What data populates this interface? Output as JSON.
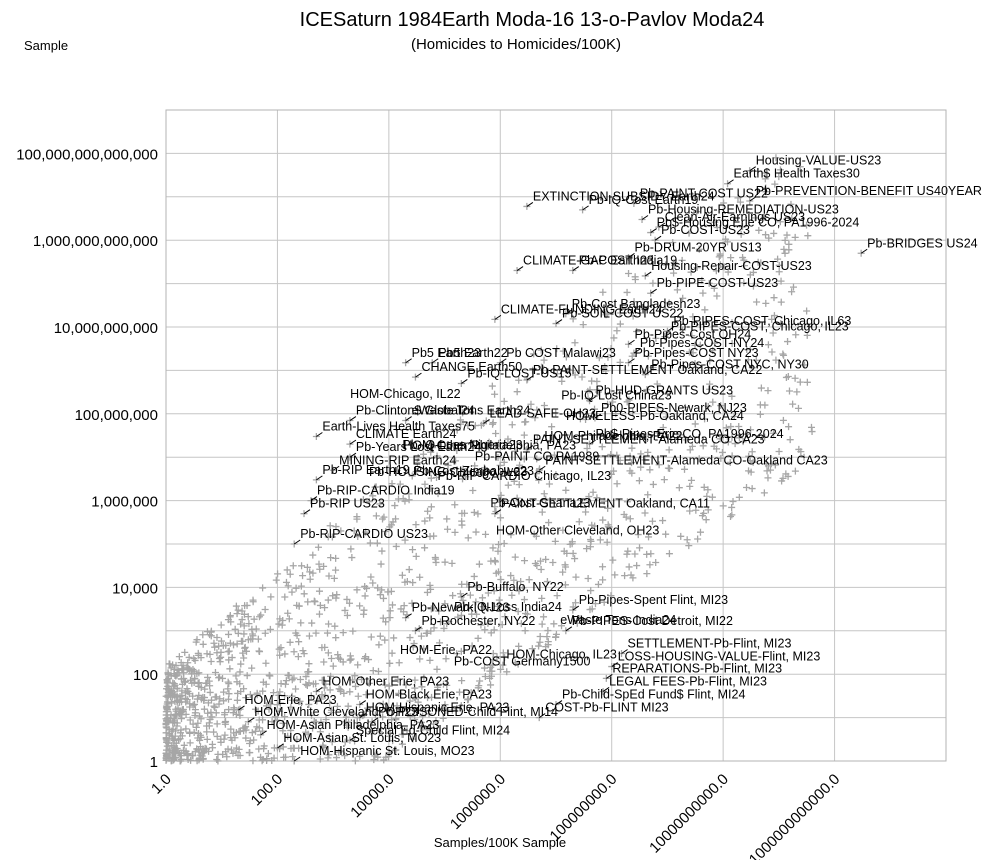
{
  "chart_data": {
    "type": "scatter",
    "title": "ICESaturn 1984Earth Moda-16 13-o-Pavlov Moda24",
    "subtitle": "(Homicides to Homicides/100K)",
    "xlabel": "Samples/100K Sample",
    "ylabel": "Sample",
    "x_scale": "log",
    "y_scale": "log",
    "xlim": [
      1,
      100000000000000
    ],
    "ylim": [
      1,
      1000000000000000
    ],
    "grid": true,
    "legend": "none",
    "marker": "plus",
    "marker_color": "#a6a6a6",
    "x_ticks": [
      "1.0",
      "100.0",
      "10000.0",
      "1000000.0",
      "100000000.0",
      "10000000000.0",
      "1000000000000.0"
    ],
    "y_ticks": [
      "1",
      "100",
      "10,000",
      "1,000,000",
      "100,000,000",
      "10,000,000,000",
      "1,000,000,000,000",
      "100,000,000,000,000"
    ],
    "labeled_points": [
      {
        "label": "Earth$ Health Taxes30",
        "x": 12000000000,
        "y": 20000000000000
      },
      {
        "label": "EXTINCTION-SUBSIDY Earth24",
        "x": 3000000,
        "y": 6000000000000
      },
      {
        "label": "CLIMATE-GAP Earth23",
        "x": 2000000,
        "y": 200000000000
      },
      {
        "label": "Pb-PAINT-SETTLEMENT Oakland, CA22",
        "x": 3000000,
        "y": 600000000
      },
      {
        "label": "Pb-Clinton$ Global24",
        "x": 2000,
        "y": 70000000
      },
      {
        "label": "Earth-Lives Health Taxes75",
        "x": 500,
        "y": 30000000
      },
      {
        "label": "Pb-PAINT-COST US22",
        "x": 250000000,
        "y": 7000000000000
      },
      {
        "label": "Pb-Housing-REMEDIATION-US23",
        "x": 350000000,
        "y": 3000000000000
      },
      {
        "label": "Pb$-Housing Erie CO, PA1996-2024",
        "x": 500000000,
        "y": 1500000000000
      },
      {
        "label": "Housing-VALUE-US23",
        "x": 30000000000,
        "y": 40000000000000
      },
      {
        "label": "Pb-PREVENTION-BENEFIT US40YEAR",
        "x": 30000000000,
        "y": 8000000000000
      },
      {
        "label": "Pb-IQ-Cost Earth19",
        "x": 30000000,
        "y": 5000000000000
      },
      {
        "label": "Clean-Air-Earnings US23",
        "x": 700000000,
        "y": 2000000000000
      },
      {
        "label": "Pb-COST-US23",
        "x": 600000000,
        "y": 1000000000000
      },
      {
        "label": "Pb-BRIDGES US24",
        "x": 3000000000000,
        "y": 500000000000
      },
      {
        "label": "Pb-DRUM-20YR US13",
        "x": 200000000,
        "y": 400000000000
      },
      {
        "label": "Pb-COST India19",
        "x": 20000000,
        "y": 200000000000
      },
      {
        "label": "Housing-Repair-COST-US23",
        "x": 400000000,
        "y": 150000000000
      },
      {
        "label": "Pb-PIPE-COST-US23",
        "x": 500000000,
        "y": 60000000000
      },
      {
        "label": "CLIMATE-FUNDING Earth24",
        "x": 800000,
        "y": 15000000000
      },
      {
        "label": "Pb-Cost Bangladesh23",
        "x": 15000000,
        "y": 20000000000
      },
      {
        "label": "Pb-SOIL-COST US22",
        "x": 10000000,
        "y": 12000000000
      },
      {
        "label": "Pb-PIPES-COST, Chicago, IL63",
        "x": 1000000000,
        "y": 8000000000
      },
      {
        "label": "Pb-PIPES-COST, Chicago, IL23",
        "x": 900000000,
        "y": 6000000000
      },
      {
        "label": "Pb-Pipes-Cost OH24",
        "x": 200000000,
        "y": 4000000000
      },
      {
        "label": "Pb-Pipes-COST-NY24",
        "x": 250000000,
        "y": 2500000000
      },
      {
        "label": "Pb-Pipes-COST NY23",
        "x": 200000000,
        "y": 1500000000
      },
      {
        "label": "Pb-Pipes-COST NYC, NY30",
        "x": 400000000,
        "y": 800000000
      },
      {
        "label": "Pb5 Earth23",
        "x": 20000,
        "y": 1500000000
      },
      {
        "label": "Pb5 Earth22",
        "x": 60000,
        "y": 1500000000
      },
      {
        "label": "Pb COST Malawi23",
        "x": 1000000,
        "y": 1500000000
      },
      {
        "label": "CHANGE Earth50",
        "x": 30000,
        "y": 700000000
      },
      {
        "label": "Pb-IQ-LOST-US15",
        "x": 200000,
        "y": 500000000
      },
      {
        "label": "Pb-HUD-GRANTS US23",
        "x": 40000000,
        "y": 200000000
      },
      {
        "label": "Pb0-PIPES-Newark, NJ23",
        "x": 50000000,
        "y": 80000000
      },
      {
        "label": "LEAD-SAFE-OH23",
        "x": 500000,
        "y": 60000000
      },
      {
        "label": "eWaste Tons Earth24",
        "x": 20000,
        "y": 70000000
      },
      {
        "label": "Pb$-Pipes Erie CO, PA1996-2024",
        "x": 40000000,
        "y": 20000000
      },
      {
        "label": "PAINT-SETTLEMENT-Alameda CO CA23",
        "x": 3000000,
        "y": 15000000
      },
      {
        "label": "CLIMATE Earth24",
        "x": 2000,
        "y": 20000000
      },
      {
        "label": "Pb-Years Lost Earth24",
        "x": 2000,
        "y": 10000000
      },
      {
        "label": "PAINT-SETTLEMENT-Alameda CO-Oakland CA23",
        "x": 5000000,
        "y": 5000000
      },
      {
        "label": "MINING-RIP Earth24",
        "x": 1000,
        "y": 5000000
      },
      {
        "label": "Pb-RIP Earth19",
        "x": 500,
        "y": 3000000
      },
      {
        "label": "Pb-RIP-CARDIO India19",
        "x": 400,
        "y": 1000000
      },
      {
        "label": "Pb-RIP US23",
        "x": 300,
        "y": 500000
      },
      {
        "label": "PAINT-SETTLEMENT Oakland, CA11",
        "x": 800000,
        "y": 500000
      },
      {
        "label": "Pb-RIP-CARDIO US23",
        "x": 200,
        "y": 100000
      },
      {
        "label": "Pb-Pipes-Spent Flint, MI23",
        "x": 20000000,
        "y": 3000
      },
      {
        "label": "Pb-PIPES-Cost Detroit, MI22",
        "x": 15000000,
        "y": 1000
      },
      {
        "label": "SETTLEMENT-Pb-Flint, MI23",
        "x": 150000000,
        "y": 300
      },
      {
        "label": "LOSS-HOUSING-VALUE-Flint, MI23",
        "x": 100000000,
        "y": 150
      },
      {
        "label": "REPARATIONS-Pb-Flint, MI23",
        "x": 80000000,
        "y": 80
      },
      {
        "label": "LEGAL FEES-Pb-Flint, MI23",
        "x": 70000000,
        "y": 40
      },
      {
        "label": "Pb-Child-SpEd Fund$ Flint, MI24",
        "x": 10000000,
        "y": 20
      },
      {
        "label": "COST-Pb-FLINT MI23",
        "x": 5000000,
        "y": 10
      },
      {
        "label": "Pb-POISONED-Child Flint, MI14",
        "x": 5000,
        "y": 8
      },
      {
        "label": "Special Ed-Child Flint, MI24",
        "x": 2000,
        "y": 3
      },
      {
        "label": "HOM-Hispanic St. Louis, MO23",
        "x": 200,
        "y": 1
      },
      {
        "label": "HOM-Asian St. Louis, MO23",
        "x": 100,
        "y": 2
      },
      {
        "label": "HOM-Asian Philadelphia, PA23",
        "x": 50,
        "y": 4
      },
      {
        "label": "HOM-White Cleveland, OH23",
        "x": 30,
        "y": 8
      },
      {
        "label": "HOM-Erie, PA23",
        "x": 20,
        "y": 15
      },
      {
        "label": "HOM-Black Erie, PA23",
        "x": 3000,
        "y": 20
      },
      {
        "label": "HOM-Hispanic Erie, PA23",
        "x": 3000,
        "y": 10
      },
      {
        "label": "HOM-Other Erie, PA23",
        "x": 500,
        "y": 40
      },
      {
        "label": "Pb-Buffalo, NY22",
        "x": 200000,
        "y": 6000
      },
      {
        "label": "Pb-Newark, NJ23",
        "x": 20000,
        "y": 2000
      },
      {
        "label": "Pb-Rochester, NY22",
        "x": 30000,
        "y": 1000
      }
    ],
    "text_labels": [
      {
        "text": "Pb-IQ-Loss India24"
      },
      {
        "text": "Pb-Cost Zimbabwe23"
      },
      {
        "text": "Pb-IQ-Lost China23"
      },
      {
        "text": "Pb-Cost Ghana23"
      },
      {
        "text": "Pb-COST Germany1500"
      },
      {
        "text": "Pb-HOUSING Chicago, IL23"
      },
      {
        "text": "Pb-PAINT CO PA1989"
      },
      {
        "text": "Pb-RIP-CARDIO Chicago, IL23"
      },
      {
        "text": "HOM-Chicago, IL23"
      },
      {
        "text": "HOM-Chicago, IL22"
      },
      {
        "text": "HOM-Philadelphia, PA22"
      },
      {
        "text": "HOM-Erie, PA22"
      },
      {
        "text": "HOMELESS-Pb-Oakland, CA24"
      },
      {
        "text": "HOM-Other Cleveland, OH23"
      },
      {
        "text": "HOM-Other Philadelphia, PA23"
      },
      {
        "text": "eWaste Tons India24"
      },
      {
        "text": "Pb-IQ-Loss Nigeria23"
      }
    ]
  }
}
